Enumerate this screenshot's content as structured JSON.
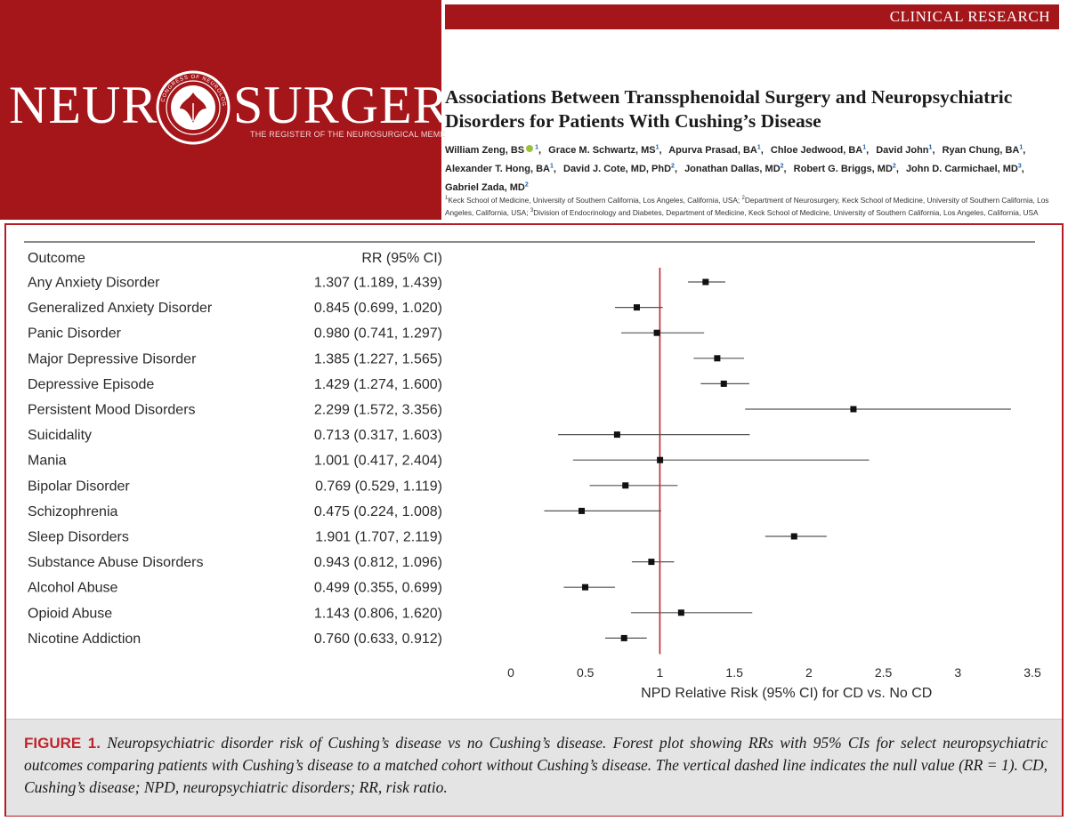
{
  "journal": {
    "logo_left": "NEUR",
    "logo_right": "SURGERY",
    "tagline": "THE REGISTER OF THE NEUROSURGICAL MEME",
    "seal_text": "CONGRESS OF NEUROLOGICAL SURGEONS",
    "section": "CLINICAL RESEARCH",
    "brand_color": "#a4161a"
  },
  "article": {
    "title": "Associations Between Transsphenoidal Surgery and Neuropsychiatric Disorders for Patients With Cushing’s Disease",
    "authors": [
      {
        "name": "William Zeng, BS",
        "aff": "1",
        "orcid": true
      },
      {
        "name": "Grace M. Schwartz, MS",
        "aff": "1"
      },
      {
        "name": "Apurva Prasad, BA",
        "aff": "1"
      },
      {
        "name": "Chloe Jedwood, BA",
        "aff": "1"
      },
      {
        "name": "David John",
        "aff": "1"
      },
      {
        "name": "Ryan Chung, BA",
        "aff": "1"
      },
      {
        "name": "Alexander T. Hong, BA",
        "aff": "1"
      },
      {
        "name": "David J. Cote, MD, PhD",
        "aff": "2"
      },
      {
        "name": "Jonathan Dallas, MD",
        "aff": "2"
      },
      {
        "name": "Robert G. Briggs, MD",
        "aff": "2"
      },
      {
        "name": "John D. Carmichael, MD",
        "aff": "3"
      },
      {
        "name": "Gabriel Zada, MD",
        "aff": "2"
      }
    ],
    "affiliations": [
      {
        "num": "1",
        "text": "Keck School of Medicine, University of Southern California, Los Angeles, California, USA;"
      },
      {
        "num": "2",
        "text": "Department of Neurosurgery, Keck School of Medicine, University of Southern California, Los"
      },
      {
        "num": "",
        "text": "Angeles, California, USA;"
      },
      {
        "num": "3",
        "text": "Division of Endocrinology and Diabetes, Department of Medicine, Keck School of Medicine, University of Southern California, Los Angeles, California, USA"
      }
    ]
  },
  "figure": {
    "label": "FIGURE 1.",
    "caption": "Neuropsychiatric disorder risk of Cushing’s disease vs no Cushing’s disease. Forest plot showing RRs with 95% CIs for select neuropsychiatric outcomes comparing patients with Cushing’s disease to a matched cohort without Cushing’s disease. The vertical dashed line indicates the null value (RR = 1). CD, Cushing’s disease; NPD, neuropsychiatric disorders; RR, risk ratio.",
    "caption_label_color": "#c0242c"
  },
  "chart_data": {
    "type": "forest",
    "col_outcome": "Outcome",
    "col_rr": "RR (95% CI)",
    "xlabel": "NPD Relative Risk (95% CI) for CD vs. No CD",
    "xlim": [
      0,
      3.5
    ],
    "xticks": [
      0,
      0.5,
      1,
      1.5,
      2,
      2.5,
      3,
      3.5
    ],
    "xtick_labels": [
      "0",
      "0.5",
      "1",
      "1.5",
      "2",
      "2.5",
      "3",
      "3.5"
    ],
    "null_value": 1,
    "null_line_color": "#c0242c",
    "rows": [
      {
        "outcome": "Any Anxiety Disorder",
        "rr": 1.307,
        "lo": 1.189,
        "hi": 1.439,
        "label": "1.307 (1.189, 1.439)"
      },
      {
        "outcome": "Generalized Anxiety Disorder",
        "rr": 0.845,
        "lo": 0.699,
        "hi": 1.02,
        "label": "0.845 (0.699, 1.020)"
      },
      {
        "outcome": "Panic Disorder",
        "rr": 0.98,
        "lo": 0.741,
        "hi": 1.297,
        "label": "0.980 (0.741, 1.297)"
      },
      {
        "outcome": "Major Depressive Disorder",
        "rr": 1.385,
        "lo": 1.227,
        "hi": 1.565,
        "label": "1.385 (1.227, 1.565)"
      },
      {
        "outcome": "Depressive Episode",
        "rr": 1.429,
        "lo": 1.274,
        "hi": 1.6,
        "label": "1.429 (1.274, 1.600)"
      },
      {
        "outcome": "Persistent Mood Disorders",
        "rr": 2.299,
        "lo": 1.572,
        "hi": 3.356,
        "label": "2.299 (1.572, 3.356)"
      },
      {
        "outcome": "Suicidality",
        "rr": 0.713,
        "lo": 0.317,
        "hi": 1.603,
        "label": "0.713 (0.317, 1.603)"
      },
      {
        "outcome": "Mania",
        "rr": 1.001,
        "lo": 0.417,
        "hi": 2.404,
        "label": "1.001 (0.417, 2.404)"
      },
      {
        "outcome": "Bipolar Disorder",
        "rr": 0.769,
        "lo": 0.529,
        "hi": 1.119,
        "label": "0.769 (0.529, 1.119)"
      },
      {
        "outcome": "Schizophrenia",
        "rr": 0.475,
        "lo": 0.224,
        "hi": 1.008,
        "label": "0.475 (0.224, 1.008)"
      },
      {
        "outcome": "Sleep Disorders",
        "rr": 1.901,
        "lo": 1.707,
        "hi": 2.119,
        "label": "1.901 (1.707, 2.119)"
      },
      {
        "outcome": "Substance Abuse Disorders",
        "rr": 0.943,
        "lo": 0.812,
        "hi": 1.096,
        "label": "0.943 (0.812, 1.096)"
      },
      {
        "outcome": "Alcohol Abuse",
        "rr": 0.499,
        "lo": 0.355,
        "hi": 0.699,
        "label": "0.499 (0.355, 0.699)"
      },
      {
        "outcome": "Opioid Abuse",
        "rr": 1.143,
        "lo": 0.806,
        "hi": 1.62,
        "label": "1.143 (0.806, 1.620)"
      },
      {
        "outcome": "Nicotine Addiction",
        "rr": 0.76,
        "lo": 0.633,
        "hi": 0.912,
        "label": "0.760 (0.633, 0.912)"
      }
    ]
  }
}
